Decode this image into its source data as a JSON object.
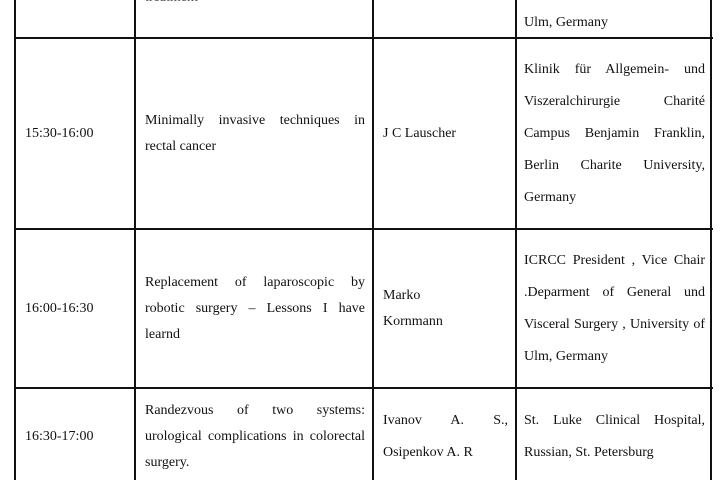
{
  "rows": [
    {
      "time": "",
      "topic": "treatment",
      "speaker": "",
      "affiliation": "Ulm, Germany"
    },
    {
      "time": "15:30-16:00",
      "topic": "Minimally invasive techniques in rectal cancer",
      "speaker": "J C Lauscher",
      "affiliation": "Klinik für Allgemein- und Viszeralchirurgie Charité Campus Benjamin Franklin, Berlin Charite University, Germany"
    },
    {
      "time": "16:00-16:30",
      "topic": "Replacement of laparoscopic by robotic surgery – Lessons I have learnd",
      "speaker": "Marko Kornmann",
      "affiliation": "ICRCC President , Vice Chair .Deparment of General und Visceral Surgery , University of Ulm, Germany"
    },
    {
      "time": "16:30-17:00",
      "topic": "Randezvous of two systems: urological complications in colorectal surgery.",
      "speaker": "Ivanov A. S., Osipenkov A. R",
      "affiliation": "St. Luke Clinical Hospital, Russian, St. Petersburg"
    }
  ]
}
